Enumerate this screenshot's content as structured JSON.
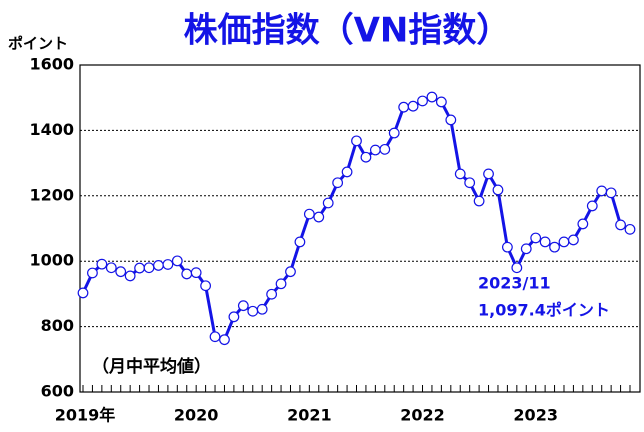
{
  "chart_data": {
    "type": "line",
    "title": "株価指数（VN指数）",
    "y_label": "ポイント",
    "note": "（月中平均値）",
    "annotation": {
      "date": "2023/11",
      "value": "1,097.4ポイント"
    },
    "categories": [
      "2019年",
      null,
      null,
      null,
      null,
      null,
      null,
      null,
      null,
      null,
      null,
      null,
      "2020",
      null,
      null,
      null,
      null,
      null,
      null,
      null,
      null,
      null,
      null,
      null,
      "2021",
      null,
      null,
      null,
      null,
      null,
      null,
      null,
      null,
      null,
      null,
      null,
      "2022",
      null,
      null,
      null,
      null,
      null,
      null,
      null,
      null,
      null,
      null,
      null,
      "2023",
      null,
      null,
      null,
      null,
      null,
      null,
      null,
      null,
      null,
      null
    ],
    "series": [
      {
        "name": "VN指数",
        "color": "#1414e6",
        "values": [
          903,
          964,
          991,
          980,
          968,
          955,
          979,
          980,
          987,
          990,
          1001,
          961,
          965,
          925,
          769,
          760,
          830,
          864,
          847,
          853,
          899,
          931,
          968,
          1059,
          1144,
          1135,
          1178,
          1240,
          1273,
          1368,
          1318,
          1340,
          1342,
          1392,
          1471,
          1474,
          1490,
          1502,
          1487,
          1432,
          1267,
          1240,
          1184,
          1267,
          1218,
          1043,
          980,
          1038,
          1071,
          1059,
          1043,
          1059,
          1065,
          1114,
          1169,
          1215,
          1209,
          1111,
          1097.4
        ]
      }
    ],
    "ylim": [
      600,
      1600
    ],
    "yticks": [
      600,
      800,
      1000,
      1200,
      1400,
      1600
    ],
    "grid": true
  }
}
